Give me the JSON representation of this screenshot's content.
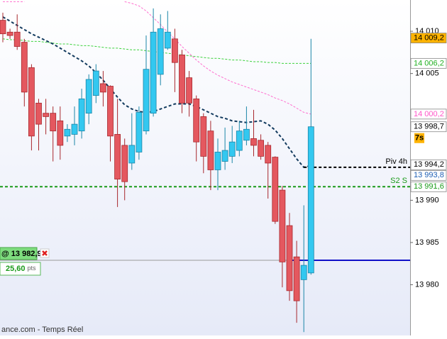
{
  "chart_data": {
    "type": "candlestick",
    "ylim": [
      13974.0,
      14013.7
    ],
    "yticks": [
      {
        "value": 14010,
        "label": "14 010"
      },
      {
        "value": 14005,
        "label": "14 005"
      },
      {
        "value": 13990,
        "label": "13 990"
      },
      {
        "value": 13985,
        "label": "13 985"
      },
      {
        "value": 13980,
        "label": "13 980"
      }
    ],
    "up_color": "#33c8f0",
    "up_border": "#1b86a8",
    "down_color": "#e4585f",
    "down_border": "#a8282e",
    "open": [
      14011.3,
      14009.9,
      14009.9,
      14008.7,
      14005.7,
      14001.5,
      14000.3,
      14000.3,
      13999.4,
      13997.6,
      13997.8,
      13998.2,
      14000.3,
      14002.4,
      14003.8,
      14003.5,
      13997.8,
      13996.5,
      13994.4,
      13995.7,
      13998.2,
      14000.3,
      14004.9,
      14008.0,
      14009.1,
      14007.2,
      14004.5,
      14002.0,
      13999.9,
      13998.2,
      13993.6,
      13994.6,
      13995.2,
      13995.9,
      13997.1,
      13997.3,
      13997.1,
      13996.5,
      13995.1,
      13991.2,
      13987.0,
      13983.3,
      13980.6,
      13981.4
    ],
    "high": [
      14012.2,
      14010.3,
      14012.0,
      14009.1,
      14006.1,
      14002.0,
      14002.0,
      14001.1,
      14001.1,
      13999.0,
      14001.1,
      14003.2,
      14004.9,
      14006.1,
      14005.3,
      14003.6,
      14002.0,
      13997.3,
      14000.3,
      14001.1,
      14009.5,
      14012.7,
      14012.0,
      14012.4,
      14010.3,
      14007.8,
      14005.3,
      14002.4,
      14000.3,
      13999.4,
      13997.3,
      13998.6,
      13998.8,
      13999.4,
      14001.1,
      14000.7,
      13997.8,
      13996.9,
      13995.2,
      13991.7,
      13988.5,
      13985.2,
      13989.4,
      14009.1
    ],
    "low": [
      14008.7,
      14009.1,
      14007.8,
      14001.1,
      13995.9,
      13995.9,
      13997.8,
      13994.6,
      13994.8,
      13996.9,
      13996.5,
      13997.3,
      13999.0,
      14001.5,
      14001.1,
      13994.6,
      13989.2,
      13990.0,
      13993.6,
      13994.8,
      13997.8,
      13999.9,
      14003.6,
      14007.8,
      14002.8,
      14000.3,
      13999.9,
      13994.6,
      13993.2,
      13991.2,
      13991.2,
      13993.6,
      13994.4,
      13995.2,
      13996.5,
      13995.2,
      13994.8,
      13990.2,
      13987.2,
      13979.7,
      13978.1,
      13975.5,
      13974.4,
      13981.2
    ],
    "close": [
      14009.7,
      14009.5,
      14008.2,
      14002.8,
      13997.6,
      13999.0,
      13999.9,
      13998.2,
      13996.5,
      13998.4,
      13999.0,
      14002.0,
      14004.3,
      14005.3,
      14002.8,
      13997.6,
      13992.5,
      13992.2,
      13996.5,
      14000.4,
      14005.5,
      14009.9,
      14010.3,
      14009.9,
      14006.3,
      14001.5,
      14001.5,
      13996.9,
      13995.2,
      13993.6,
      13995.7,
      13995.9,
      13996.9,
      13998.2,
      13998.4,
      13996.5,
      13995.2,
      13994.4,
      13987.5,
      13982.7,
      13979.3,
      13978.1,
      13982.3,
      13998.7
    ],
    "lines": [
      {
        "color": "#ff6fcf",
        "values": [
          14013.5,
          14013.5,
          14013.5,
          14013.5,
          null,
          null,
          null,
          null,
          null,
          null,
          null,
          null,
          null,
          null,
          null,
          null,
          null,
          14013.5,
          14013.3,
          14013.0,
          14012.4,
          14011.6,
          14010.8,
          14009.9,
          14009.1,
          14008.2,
          14007.4,
          14006.6,
          14005.9,
          14005.3,
          14004.8,
          14004.4,
          14004.0,
          14003.7,
          14003.4,
          14003.1,
          14002.8,
          14002.5,
          14002.1,
          14001.8,
          14001.4,
          14000.9,
          14000.4,
          14000.2
        ]
      },
      {
        "color": "#3cd23c",
        "values": [
          14009.1,
          14009.0,
          14009.0,
          14008.9,
          14008.8,
          14008.8,
          14008.7,
          14008.6,
          14008.5,
          14008.5,
          14008.4,
          14008.3,
          14008.3,
          14008.2,
          14008.1,
          14008.0,
          14008.0,
          14007.9,
          14007.8,
          14007.8,
          14007.7,
          14007.6,
          14007.5,
          14007.4,
          14007.3,
          14007.2,
          14007.1,
          14007.0,
          14006.9,
          14006.8,
          14006.8,
          14006.7,
          14006.6,
          14006.6,
          14006.5,
          14006.4,
          14006.4,
          14006.3,
          14006.3,
          14006.2,
          14006.2,
          14006.2,
          14006.2,
          14006.2
        ]
      },
      {
        "color": "#123a5e",
        "values": [
          14011.7,
          14011.2,
          14010.7,
          14010.2,
          14009.7,
          14009.3,
          14008.9,
          14008.5,
          14008.0,
          14007.5,
          14007.0,
          14006.5,
          14005.9,
          14005.1,
          14004.2,
          14003.2,
          14002.2,
          14001.3,
          14000.8,
          14000.5,
          14000.4,
          14000.5,
          14000.8,
          14001.1,
          14001.4,
          14001.4,
          14001.4,
          14001.1,
          14000.7,
          14000.3,
          13999.9,
          13999.7,
          13999.4,
          13999.3,
          13999.2,
          13999.3,
          13999.4,
          13999.0,
          13998.3,
          13997.3,
          13996.1,
          13994.9,
          13993.9,
          13994.1
        ]
      }
    ],
    "levels": [
      {
        "name": "Piv 4h",
        "value": 13993.9,
        "color": "#000000"
      },
      {
        "name": "S2 S",
        "value": 13991.6,
        "color": "#1a9a1a"
      }
    ],
    "price_tags": [
      {
        "value": 14009.2,
        "label": "14 009,2",
        "bg": "#ffb300",
        "fg": "#000000"
      },
      {
        "value": 14006.2,
        "label": "14 006,2",
        "bg": "#ffffff",
        "fg": "#22b022"
      },
      {
        "value": 14000.2,
        "label": "14 000,2",
        "bg": "#ffffff",
        "fg": "#ff55c8"
      },
      {
        "value": 13998.7,
        "label": "13 998,7",
        "bg": "#ffffff",
        "fg": "#000000"
      },
      {
        "value": 13994.2,
        "label": "13 994,2",
        "bg": "#ffffff",
        "fg": "#000000"
      },
      {
        "value": 13993.8,
        "label": "13 993,8",
        "bg": "#ffffff",
        "fg": "#1e5fb4"
      },
      {
        "value": 13991.6,
        "label": "13 991,6",
        "bg": "#ffffff",
        "fg": "#1a9a1a"
      }
    ],
    "timer": "7s",
    "position": {
      "value": 13982.9,
      "label": "@ 13 982,9",
      "pnl": "25,60",
      "pnl_unit": "pts",
      "color": "#1010c8"
    },
    "footer": "ance.com - Temps Réel"
  }
}
